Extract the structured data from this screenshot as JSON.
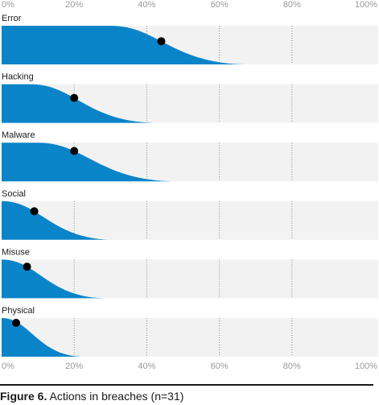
{
  "chart_data": {
    "type": "area",
    "subtype": "density (half-eye) plot per category, dot marks estimate",
    "x_axis": {
      "ticks": [
        "0%",
        "20%",
        "40%",
        "60%",
        "80%",
        "100%"
      ],
      "range": [
        0,
        100
      ],
      "unit": "%"
    },
    "grid": "dotted vertical lines at 20% intervals",
    "colors": {
      "fill": "#0a84c9",
      "panel": "#f2f2f2",
      "grid": "#8a8a8a",
      "dot": "#000000"
    },
    "categories": [
      "Error",
      "Hacking",
      "Malware",
      "Social",
      "Misuse",
      "Physical"
    ],
    "series": [
      {
        "label": "Error",
        "point": 44,
        "plateau_end": 30,
        "tail_end": 67
      },
      {
        "label": "Hacking",
        "point": 20,
        "plateau_end": 8,
        "tail_end": 42
      },
      {
        "label": "Malware",
        "point": 20,
        "plateau_end": 10,
        "tail_end": 47
      },
      {
        "label": "Social",
        "point": 9,
        "plateau_end": 0,
        "tail_end": 30
      },
      {
        "label": "Misuse",
        "point": 7,
        "plateau_end": 0,
        "tail_end": 28
      },
      {
        "label": "Physical",
        "point": 4,
        "plateau_end": 0,
        "tail_end": 22
      }
    ]
  },
  "caption": {
    "figure_label": "Figure 6.",
    "text": "Actions in breaches (n=31)"
  }
}
